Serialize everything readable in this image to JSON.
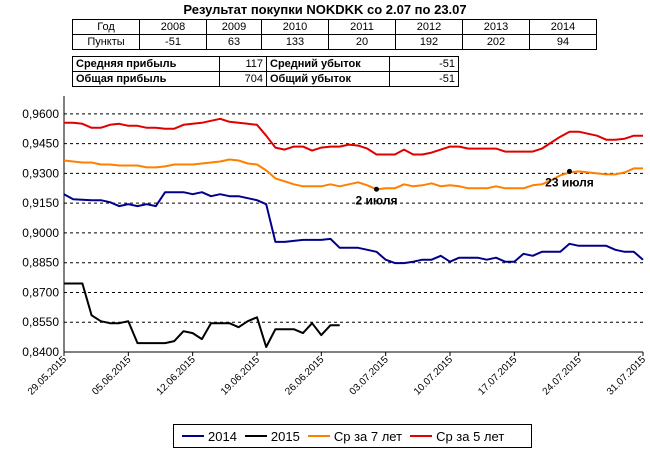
{
  "title": "Результат покупки NOKDKK со 2.07 по 23.07",
  "table": {
    "row_year_label": "Год",
    "row_points_label": "Пункты",
    "years": [
      "2008",
      "2009",
      "2010",
      "2011",
      "2012",
      "2013",
      "2014"
    ],
    "points": [
      "-51",
      "63",
      "133",
      "20",
      "192",
      "202",
      "94"
    ],
    "avg_profit_label": "Средняя прибыль",
    "avg_profit_value": "117",
    "avg_loss_label": "Средний убыток",
    "avg_loss_value": "-51",
    "total_profit_label": "Общая прибыль",
    "total_profit_value": "704",
    "total_loss_label": "Общий убыток",
    "total_loss_value": "-51"
  },
  "chart_data": {
    "type": "line",
    "ylim": [
      0.84,
      0.969
    ],
    "yticks": [
      "0,8400",
      "0,8550",
      "0,8700",
      "0,8850",
      "0,9000",
      "0,9150",
      "0,9300",
      "0,9450",
      "0,9600"
    ],
    "ytick_values": [
      0.84,
      0.855,
      0.87,
      0.885,
      0.9,
      0.915,
      0.93,
      0.945,
      0.96
    ],
    "grid": "horizontal dashed",
    "x_start": "2015-05-29",
    "x_end": "2015-07-31",
    "xticks": [
      "29.05.2015",
      "05.06.2015",
      "12.06.2015",
      "19.06.2015",
      "26.06.2015",
      "03.07.2015",
      "10.07.2015",
      "17.07.2015",
      "24.07.2015",
      "31.07.2015"
    ],
    "xtick_dates": [
      "2015-05-29",
      "2015-06-05",
      "2015-06-12",
      "2015-06-19",
      "2015-06-26",
      "2015-07-03",
      "2015-07-10",
      "2015-07-17",
      "2015-07-24",
      "2015-07-31"
    ],
    "legend_position": "bottom",
    "series": [
      {
        "name": "2014",
        "color": "#00008B",
        "points": [
          [
            "2015-05-29",
            0.9195
          ],
          [
            "2015-05-30",
            0.917
          ],
          [
            "2015-05-31",
            0.9167
          ],
          [
            "2015-06-01",
            0.9165
          ],
          [
            "2015-06-02",
            0.9165
          ],
          [
            "2015-06-03",
            0.9155
          ],
          [
            "2015-06-04",
            0.9135
          ],
          [
            "2015-06-05",
            0.9145
          ],
          [
            "2015-06-06",
            0.9135
          ],
          [
            "2015-06-07",
            0.9145
          ],
          [
            "2015-06-08",
            0.9135
          ],
          [
            "2015-06-09",
            0.9205
          ],
          [
            "2015-06-10",
            0.9205
          ],
          [
            "2015-06-11",
            0.9205
          ],
          [
            "2015-06-12",
            0.9195
          ],
          [
            "2015-06-13",
            0.9205
          ],
          [
            "2015-06-14",
            0.9185
          ],
          [
            "2015-06-15",
            0.9195
          ],
          [
            "2015-06-16",
            0.9185
          ],
          [
            "2015-06-17",
            0.9185
          ],
          [
            "2015-06-18",
            0.9175
          ],
          [
            "2015-06-19",
            0.9165
          ],
          [
            "2015-06-20",
            0.9145
          ],
          [
            "2015-06-21",
            0.8955
          ],
          [
            "2015-06-22",
            0.8955
          ],
          [
            "2015-06-23",
            0.896
          ],
          [
            "2015-06-24",
            0.8965
          ],
          [
            "2015-06-25",
            0.8965
          ],
          [
            "2015-06-26",
            0.8965
          ],
          [
            "2015-06-27",
            0.897
          ],
          [
            "2015-06-28",
            0.8925
          ],
          [
            "2015-06-29",
            0.8925
          ],
          [
            "2015-06-30",
            0.8925
          ],
          [
            "2015-07-01",
            0.8915
          ],
          [
            "2015-07-02",
            0.8905
          ],
          [
            "2015-07-03",
            0.8865
          ],
          [
            "2015-07-04",
            0.8848
          ],
          [
            "2015-07-05",
            0.8848
          ],
          [
            "2015-07-06",
            0.8855
          ],
          [
            "2015-07-07",
            0.8865
          ],
          [
            "2015-07-08",
            0.8865
          ],
          [
            "2015-07-09",
            0.8885
          ],
          [
            "2015-07-10",
            0.8855
          ],
          [
            "2015-07-11",
            0.8875
          ],
          [
            "2015-07-12",
            0.8875
          ],
          [
            "2015-07-13",
            0.8875
          ],
          [
            "2015-07-14",
            0.8865
          ],
          [
            "2015-07-15",
            0.8875
          ],
          [
            "2015-07-16",
            0.8855
          ],
          [
            "2015-07-17",
            0.8855
          ],
          [
            "2015-07-18",
            0.8895
          ],
          [
            "2015-07-19",
            0.8885
          ],
          [
            "2015-07-20",
            0.8905
          ],
          [
            "2015-07-21",
            0.8905
          ],
          [
            "2015-07-22",
            0.8905
          ],
          [
            "2015-07-23",
            0.8945
          ],
          [
            "2015-07-24",
            0.8935
          ],
          [
            "2015-07-25",
            0.8935
          ],
          [
            "2015-07-26",
            0.8935
          ],
          [
            "2015-07-27",
            0.8935
          ],
          [
            "2015-07-28",
            0.8915
          ],
          [
            "2015-07-29",
            0.8905
          ],
          [
            "2015-07-30",
            0.8905
          ],
          [
            "2015-07-31",
            0.8865
          ]
        ]
      },
      {
        "name": "2015",
        "color": "#000000",
        "points": [
          [
            "2015-05-29",
            0.8745
          ],
          [
            "2015-05-30",
            0.8745
          ],
          [
            "2015-05-31",
            0.8745
          ],
          [
            "2015-06-01",
            0.8585
          ],
          [
            "2015-06-02",
            0.8555
          ],
          [
            "2015-06-03",
            0.8545
          ],
          [
            "2015-06-04",
            0.8545
          ],
          [
            "2015-06-05",
            0.8555
          ],
          [
            "2015-06-06",
            0.8445
          ],
          [
            "2015-06-07",
            0.8445
          ],
          [
            "2015-06-08",
            0.8445
          ],
          [
            "2015-06-09",
            0.8445
          ],
          [
            "2015-06-10",
            0.8455
          ],
          [
            "2015-06-11",
            0.8505
          ],
          [
            "2015-06-12",
            0.8495
          ],
          [
            "2015-06-13",
            0.8465
          ],
          [
            "2015-06-14",
            0.8545
          ],
          [
            "2015-06-15",
            0.8545
          ],
          [
            "2015-06-16",
            0.8545
          ],
          [
            "2015-06-17",
            0.8525
          ],
          [
            "2015-06-18",
            0.8555
          ],
          [
            "2015-06-19",
            0.8575
          ],
          [
            "2015-06-20",
            0.8425
          ],
          [
            "2015-06-21",
            0.8515
          ],
          [
            "2015-06-22",
            0.8515
          ],
          [
            "2015-06-23",
            0.8515
          ],
          [
            "2015-06-24",
            0.8495
          ],
          [
            "2015-06-25",
            0.8545
          ],
          [
            "2015-06-26",
            0.8485
          ],
          [
            "2015-06-27",
            0.8535
          ],
          [
            "2015-06-28",
            0.8535
          ]
        ]
      },
      {
        "name": "Ср за 7 лет",
        "color": "#FF7F00",
        "points": [
          [
            "2015-05-29",
            0.9365
          ],
          [
            "2015-05-30",
            0.936
          ],
          [
            "2015-05-31",
            0.9355
          ],
          [
            "2015-06-01",
            0.9355
          ],
          [
            "2015-06-02",
            0.9345
          ],
          [
            "2015-06-03",
            0.9345
          ],
          [
            "2015-06-04",
            0.934
          ],
          [
            "2015-06-05",
            0.934
          ],
          [
            "2015-06-06",
            0.934
          ],
          [
            "2015-06-07",
            0.933
          ],
          [
            "2015-06-08",
            0.933
          ],
          [
            "2015-06-09",
            0.9335
          ],
          [
            "2015-06-10",
            0.9345
          ],
          [
            "2015-06-11",
            0.9345
          ],
          [
            "2015-06-12",
            0.9345
          ],
          [
            "2015-06-13",
            0.935
          ],
          [
            "2015-06-14",
            0.9355
          ],
          [
            "2015-06-15",
            0.936
          ],
          [
            "2015-06-16",
            0.937
          ],
          [
            "2015-06-17",
            0.9365
          ],
          [
            "2015-06-18",
            0.935
          ],
          [
            "2015-06-19",
            0.9345
          ],
          [
            "2015-06-20",
            0.9315
          ],
          [
            "2015-06-21",
            0.9275
          ],
          [
            "2015-06-22",
            0.926
          ],
          [
            "2015-06-23",
            0.9245
          ],
          [
            "2015-06-24",
            0.9235
          ],
          [
            "2015-06-25",
            0.9235
          ],
          [
            "2015-06-26",
            0.9235
          ],
          [
            "2015-06-27",
            0.9245
          ],
          [
            "2015-06-28",
            0.9235
          ],
          [
            "2015-06-29",
            0.9245
          ],
          [
            "2015-06-30",
            0.9255
          ],
          [
            "2015-07-01",
            0.924
          ],
          [
            "2015-07-02",
            0.922
          ],
          [
            "2015-07-03",
            0.9225
          ],
          [
            "2015-07-04",
            0.9225
          ],
          [
            "2015-07-05",
            0.9245
          ],
          [
            "2015-07-06",
            0.9235
          ],
          [
            "2015-07-07",
            0.924
          ],
          [
            "2015-07-08",
            0.925
          ],
          [
            "2015-07-09",
            0.9235
          ],
          [
            "2015-07-10",
            0.924
          ],
          [
            "2015-07-11",
            0.9235
          ],
          [
            "2015-07-12",
            0.9225
          ],
          [
            "2015-07-13",
            0.9225
          ],
          [
            "2015-07-14",
            0.9225
          ],
          [
            "2015-07-15",
            0.9235
          ],
          [
            "2015-07-16",
            0.9225
          ],
          [
            "2015-07-17",
            0.9225
          ],
          [
            "2015-07-18",
            0.9225
          ],
          [
            "2015-07-19",
            0.924
          ],
          [
            "2015-07-20",
            0.9245
          ],
          [
            "2015-07-21",
            0.9265
          ],
          [
            "2015-07-22",
            0.929
          ],
          [
            "2015-07-23",
            0.9305
          ],
          [
            "2015-07-24",
            0.931
          ],
          [
            "2015-07-25",
            0.9305
          ],
          [
            "2015-07-26",
            0.93
          ],
          [
            "2015-07-27",
            0.9295
          ],
          [
            "2015-07-28",
            0.9295
          ],
          [
            "2015-07-29",
            0.9305
          ],
          [
            "2015-07-30",
            0.9325
          ],
          [
            "2015-07-31",
            0.9325
          ]
        ]
      },
      {
        "name": "Ср за 5 лет",
        "color": "#E00000",
        "points": [
          [
            "2015-05-29",
            0.9555
          ],
          [
            "2015-05-30",
            0.9555
          ],
          [
            "2015-05-31",
            0.955
          ],
          [
            "2015-06-01",
            0.953
          ],
          [
            "2015-06-02",
            0.953
          ],
          [
            "2015-06-03",
            0.9545
          ],
          [
            "2015-06-04",
            0.955
          ],
          [
            "2015-06-05",
            0.954
          ],
          [
            "2015-06-06",
            0.954
          ],
          [
            "2015-06-07",
            0.953
          ],
          [
            "2015-06-08",
            0.953
          ],
          [
            "2015-06-09",
            0.9525
          ],
          [
            "2015-06-10",
            0.9525
          ],
          [
            "2015-06-11",
            0.9545
          ],
          [
            "2015-06-12",
            0.955
          ],
          [
            "2015-06-13",
            0.9555
          ],
          [
            "2015-06-14",
            0.9565
          ],
          [
            "2015-06-15",
            0.9575
          ],
          [
            "2015-06-16",
            0.956
          ],
          [
            "2015-06-17",
            0.9555
          ],
          [
            "2015-06-18",
            0.955
          ],
          [
            "2015-06-19",
            0.9545
          ],
          [
            "2015-06-20",
            0.949
          ],
          [
            "2015-06-21",
            0.943
          ],
          [
            "2015-06-22",
            0.942
          ],
          [
            "2015-06-23",
            0.9435
          ],
          [
            "2015-06-24",
            0.9435
          ],
          [
            "2015-06-25",
            0.9415
          ],
          [
            "2015-06-26",
            0.943
          ],
          [
            "2015-06-27",
            0.9435
          ],
          [
            "2015-06-28",
            0.9435
          ],
          [
            "2015-06-29",
            0.9445
          ],
          [
            "2015-06-30",
            0.944
          ],
          [
            "2015-07-01",
            0.9425
          ],
          [
            "2015-07-02",
            0.9395
          ],
          [
            "2015-07-03",
            0.9395
          ],
          [
            "2015-07-04",
            0.9395
          ],
          [
            "2015-07-05",
            0.942
          ],
          [
            "2015-07-06",
            0.9395
          ],
          [
            "2015-07-07",
            0.9395
          ],
          [
            "2015-07-08",
            0.9405
          ],
          [
            "2015-07-09",
            0.942
          ],
          [
            "2015-07-10",
            0.9435
          ],
          [
            "2015-07-11",
            0.9435
          ],
          [
            "2015-07-12",
            0.9425
          ],
          [
            "2015-07-13",
            0.9425
          ],
          [
            "2015-07-14",
            0.9425
          ],
          [
            "2015-07-15",
            0.9425
          ],
          [
            "2015-07-16",
            0.941
          ],
          [
            "2015-07-17",
            0.941
          ],
          [
            "2015-07-18",
            0.941
          ],
          [
            "2015-07-19",
            0.941
          ],
          [
            "2015-07-20",
            0.9425
          ],
          [
            "2015-07-21",
            0.9455
          ],
          [
            "2015-07-22",
            0.9485
          ],
          [
            "2015-07-23",
            0.951
          ],
          [
            "2015-07-24",
            0.951
          ],
          [
            "2015-07-25",
            0.95
          ],
          [
            "2015-07-26",
            0.949
          ],
          [
            "2015-07-27",
            0.947
          ],
          [
            "2015-07-28",
            0.947
          ],
          [
            "2015-07-29",
            0.9475
          ],
          [
            "2015-07-30",
            0.949
          ],
          [
            "2015-07-31",
            0.949
          ]
        ]
      }
    ],
    "annotations": [
      {
        "text": "2 июля",
        "date": "2015-07-02",
        "value": 0.922,
        "label_side": "below"
      },
      {
        "text": "23 июля",
        "date": "2015-07-23",
        "value": 0.931,
        "label_side": "below"
      }
    ]
  }
}
